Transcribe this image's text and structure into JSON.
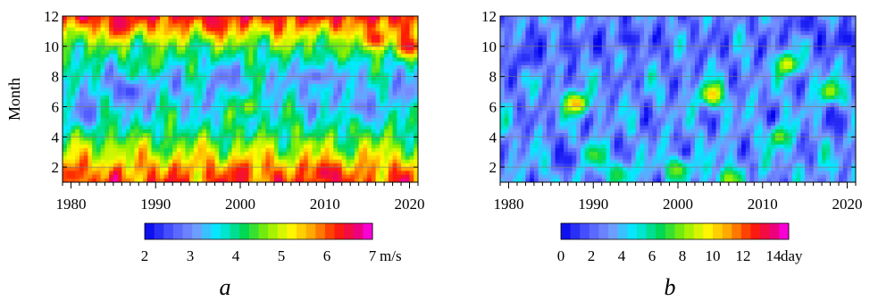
{
  "chart_data": [
    {
      "type": "heatmap",
      "panel_label": "a",
      "ylabel": "Month",
      "xlim": [
        1979,
        2021
      ],
      "ylim": [
        1,
        12
      ],
      "x_ticks": [
        1980,
        1990,
        2000,
        2010,
        2020
      ],
      "y_ticks": [
        2,
        4,
        6,
        8,
        10,
        12
      ],
      "grid": true,
      "colorbar": {
        "range": [
          2,
          7
        ],
        "tick_values": [
          2,
          3,
          4,
          5,
          6,
          7
        ],
        "tick_labels": [
          "2",
          "3",
          "4",
          "5",
          "6",
          "7"
        ],
        "unit": "m/s"
      },
      "month_profile": [
        {
          "month": 1,
          "value": 6.0
        },
        {
          "month": 2,
          "value": 5.6
        },
        {
          "month": 3,
          "value": 4.9
        },
        {
          "month": 4,
          "value": 4.3
        },
        {
          "month": 5,
          "value": 3.8
        },
        {
          "month": 6,
          "value": 3.5
        },
        {
          "month": 7,
          "value": 3.4
        },
        {
          "month": 8,
          "value": 3.5
        },
        {
          "month": 9,
          "value": 3.8
        },
        {
          "month": 10,
          "value": 4.4
        },
        {
          "month": 11,
          "value": 5.4
        },
        {
          "month": 12,
          "value": 6.3
        }
      ],
      "features": [
        {
          "year": 1987,
          "month": 7,
          "value": 2.4
        },
        {
          "year": 1982,
          "month": 5.5,
          "value": 2.6
        },
        {
          "year": 2009,
          "month": 8,
          "value": 2.7
        },
        {
          "year": 1998,
          "month": 8,
          "value": 2.8
        },
        {
          "year": 2014,
          "month": 6,
          "value": 2.9
        },
        {
          "year": 2020,
          "month": 7,
          "value": 3.0
        },
        {
          "year": 1986,
          "month": 11.5,
          "value": 6.6
        },
        {
          "year": 1997,
          "month": 11.6,
          "value": 6.5
        },
        {
          "year": 2016,
          "month": 10.5,
          "value": 6.4
        },
        {
          "year": 2020,
          "month": 10,
          "value": 6.5
        },
        {
          "year": 2010,
          "month": 1.6,
          "value": 6.6
        },
        {
          "year": 2000,
          "month": 1.5,
          "value": 6.4
        },
        {
          "year": 1980,
          "month": 1.5,
          "value": 6.2
        },
        {
          "year": 1985,
          "month": 3,
          "value": 5.0
        },
        {
          "year": 2001,
          "month": 6,
          "value": 4.8
        },
        {
          "year": 1990,
          "month": 9,
          "value": 4.6
        },
        {
          "year": 2012,
          "month": 10,
          "value": 4.6
        }
      ]
    },
    {
      "type": "heatmap",
      "panel_label": "b",
      "ylabel": "",
      "xlim": [
        1979,
        2021
      ],
      "ylim": [
        1,
        12
      ],
      "x_ticks": [
        1980,
        1990,
        2000,
        2010,
        2020
      ],
      "y_ticks": [
        2,
        4,
        6,
        8,
        10,
        12
      ],
      "grid": true,
      "colorbar": {
        "range": [
          0,
          15
        ],
        "tick_values": [
          0,
          2,
          4,
          6,
          8,
          10,
          12,
          14
        ],
        "tick_labels": [
          "0",
          "2",
          "4",
          "6",
          "8",
          "10",
          "12",
          "14"
        ],
        "unit": "day"
      },
      "month_profile": [
        {
          "month": 1,
          "value": 3.2
        },
        {
          "month": 2,
          "value": 3.6
        },
        {
          "month": 3,
          "value": 3.2
        },
        {
          "month": 4,
          "value": 3.0
        },
        {
          "month": 5,
          "value": 3.0
        },
        {
          "month": 6,
          "value": 3.1
        },
        {
          "month": 7,
          "value": 3.1
        },
        {
          "month": 8,
          "value": 3.0
        },
        {
          "month": 9,
          "value": 2.8
        },
        {
          "month": 10,
          "value": 2.6
        },
        {
          "month": 11,
          "value": 2.6
        },
        {
          "month": 12,
          "value": 2.8
        }
      ],
      "features": [
        {
          "year": 1988,
          "month": 6.2,
          "value": 11.0
        },
        {
          "year": 2004,
          "month": 6.8,
          "value": 10.5
        },
        {
          "year": 2013,
          "month": 8.8,
          "value": 9.5
        },
        {
          "year": 2018,
          "month": 7.0,
          "value": 8.5
        },
        {
          "year": 2000,
          "month": 1.8,
          "value": 8.0
        },
        {
          "year": 1990,
          "month": 2.8,
          "value": 7.5
        },
        {
          "year": 2012,
          "month": 4.0,
          "value": 8.0
        },
        {
          "year": 2006,
          "month": 1.2,
          "value": 8.5
        },
        {
          "year": 1993,
          "month": 1.5,
          "value": 7.0
        },
        {
          "year": 1994,
          "month": 10.5,
          "value": 0.5
        },
        {
          "year": 2020,
          "month": 10.5,
          "value": 0.3
        },
        {
          "year": 1987,
          "month": 10.0,
          "value": 0.8
        },
        {
          "year": 2015,
          "month": 11.5,
          "value": 0.5
        },
        {
          "year": 1987,
          "month": 2.5,
          "value": 0.6
        },
        {
          "year": 2019,
          "month": 5.0,
          "value": 0.8
        },
        {
          "year": 1982,
          "month": 9.2,
          "value": 0.8
        }
      ]
    }
  ]
}
